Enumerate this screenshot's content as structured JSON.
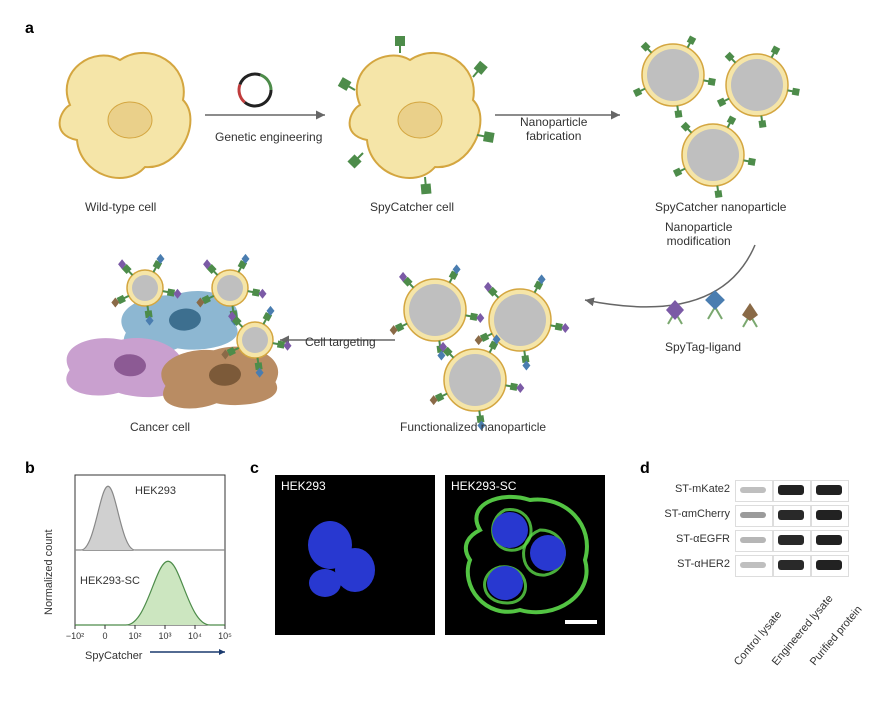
{
  "panelLabels": {
    "a": "a",
    "b": "b",
    "c": "c",
    "d": "d"
  },
  "panelA": {
    "labels": {
      "wildType": "Wild-type cell",
      "spyCatcherCell": "SpyCatcher cell",
      "spyCatcherNP": "SpyCatcher nanoparticle",
      "functionalizedNP": "Functionalized nanoparticle",
      "cancerCell": "Cancer cell",
      "spyTagLigand": "SpyTag-ligand",
      "geneticEngineering": "Genetic engineering",
      "npFabrication": "Nanoparticle\nfabrication",
      "npModification": "Nanoparticle\nmodification",
      "cellTargeting": "Cell targeting"
    },
    "colors": {
      "cellFill": "#f5e5a8",
      "cellStroke": "#d4a640",
      "nucleusFill": "#ead08a",
      "spyCatcher": "#4d8c4a",
      "npFill": "#bfbfbf",
      "npMembrane": "#f5e5a8",
      "npStroke": "#d4a640",
      "arrow": "#666666",
      "plasmidRed": "#c03c3c",
      "plasmidGreen": "#4d8c4a",
      "plasmidBlack": "#222222",
      "cancerBlue": "#8db7d2",
      "cancerBlueN": "#3d6f8f",
      "cancerBrown": "#b98c63",
      "cancerBrownN": "#7c5a39",
      "cancerPurple": "#c9a0cf",
      "cancerPurpleN": "#8c5a94",
      "ligandPurple": "#7b5aa6",
      "ligandBlue": "#4a7db0",
      "ligandBrown": "#8a6a47",
      "ligandStem": "#7aa86f"
    }
  },
  "panelB": {
    "yLabel": "Normalized count",
    "xLabel": "SpyCatcher",
    "topLabel": "HEK293",
    "bottomLabel": "HEK293-SC",
    "xTicks": [
      "−10²",
      "0",
      "10²",
      "10³",
      "10⁴",
      "10⁵"
    ],
    "colors": {
      "topFill": "#d0d0d0",
      "topStroke": "#888888",
      "bottomFill": "#cce6c0",
      "bottomStroke": "#4d8c4a",
      "axis": "#333333",
      "arrow": "#1a3a6e"
    },
    "topPeak": {
      "centerX": 0.22,
      "width": 0.09,
      "height": 0.85
    },
    "bottomPeak": {
      "centerX": 0.62,
      "width": 0.14,
      "height": 0.85
    }
  },
  "panelC": {
    "leftLabel": "HEK293",
    "rightLabel": "HEK293-SC",
    "colors": {
      "bg": "#000000",
      "nucleus": "#2838d0",
      "membrane": "#5cd94a",
      "scaleBar": "#ffffff"
    }
  },
  "panelD": {
    "rowLabels": [
      "ST-mKate2",
      "ST-αmCherry",
      "ST-αEGFR",
      "ST-αHER2"
    ],
    "colLabels": [
      "Control lysate",
      "Engineered lysate",
      "Purified protein"
    ],
    "bands": [
      [
        0.05,
        0.95,
        0.95
      ],
      [
        0.25,
        0.9,
        0.95
      ],
      [
        0.1,
        0.9,
        0.95
      ],
      [
        0.05,
        0.9,
        0.95
      ]
    ],
    "colors": {
      "lane": "#ffffff",
      "band": "#1a1a1a",
      "border": "#e0e0e0"
    }
  }
}
